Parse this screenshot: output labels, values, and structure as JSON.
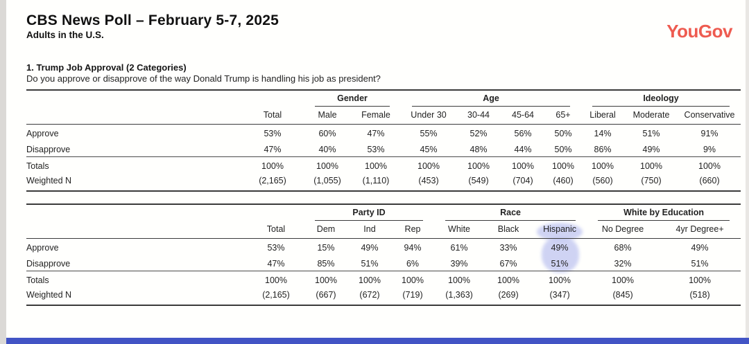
{
  "header": {
    "title": "CBS News Poll – February 5-7, 2025",
    "subtitle": "Adults in the U.S.",
    "logo_text": "YouGov",
    "logo_color": "#EE5B50"
  },
  "question": {
    "heading": "1. Trump Job Approval (2 Categories)",
    "text": "Do you approve or disapprove of the way Donald Trump is handling his job as president?"
  },
  "table1": {
    "group_header": [
      {
        "label": "",
        "span": 2
      },
      {
        "label": "Gender",
        "span": 2
      },
      {
        "label": "Age",
        "span": 4
      },
      {
        "label": "Ideology",
        "span": 3
      }
    ],
    "columns": [
      "",
      "Total",
      "Male",
      "Female",
      "Under 30",
      "30-44",
      "45-64",
      "65+",
      "Liberal",
      "Moderate",
      "Conservative"
    ],
    "rows": [
      {
        "label": "Approve",
        "values": [
          "53%",
          "60%",
          "47%",
          "55%",
          "52%",
          "56%",
          "50%",
          "14%",
          "51%",
          "91%"
        ]
      },
      {
        "label": "Disapprove",
        "values": [
          "47%",
          "40%",
          "53%",
          "45%",
          "48%",
          "44%",
          "50%",
          "86%",
          "49%",
          "9%"
        ]
      },
      {
        "label": "Totals",
        "divider": true,
        "values": [
          "100%",
          "100%",
          "100%",
          "100%",
          "100%",
          "100%",
          "100%",
          "100%",
          "100%",
          "100%"
        ]
      },
      {
        "label": "Weighted N",
        "values": [
          "(2,165)",
          "(1,055)",
          "(1,110)",
          "(453)",
          "(549)",
          "(704)",
          "(460)",
          "(560)",
          "(750)",
          "(660)"
        ]
      }
    ]
  },
  "table2": {
    "group_header": [
      {
        "label": "",
        "span": 2
      },
      {
        "label": "Party ID",
        "span": 3
      },
      {
        "label": "Race",
        "span": 3
      },
      {
        "label": "White by Education",
        "span": 2
      }
    ],
    "columns": [
      "",
      "Total",
      "Dem",
      "Ind",
      "Rep",
      "White",
      "Black",
      "Hispanic",
      "No Degree",
      "4yr Degree+"
    ],
    "rows": [
      {
        "label": "Approve",
        "values": [
          "53%",
          "15%",
          "49%",
          "94%",
          "61%",
          "33%",
          "49%",
          "68%",
          "49%"
        ]
      },
      {
        "label": "Disapprove",
        "values": [
          "47%",
          "85%",
          "51%",
          "6%",
          "39%",
          "67%",
          "51%",
          "32%",
          "51%"
        ]
      },
      {
        "label": "Totals",
        "divider": true,
        "values": [
          "100%",
          "100%",
          "100%",
          "100%",
          "100%",
          "100%",
          "100%",
          "100%",
          "100%"
        ]
      },
      {
        "label": "Weighted N",
        "values": [
          "(2,165)",
          "(667)",
          "(672)",
          "(719)",
          "(1,363)",
          "(269)",
          "(347)",
          "(845)",
          "(518)"
        ]
      }
    ],
    "highlight": {
      "column": "Hispanic",
      "color": "#C7CCF2"
    }
  },
  "footer": {
    "bar_color": "#4254C5"
  }
}
